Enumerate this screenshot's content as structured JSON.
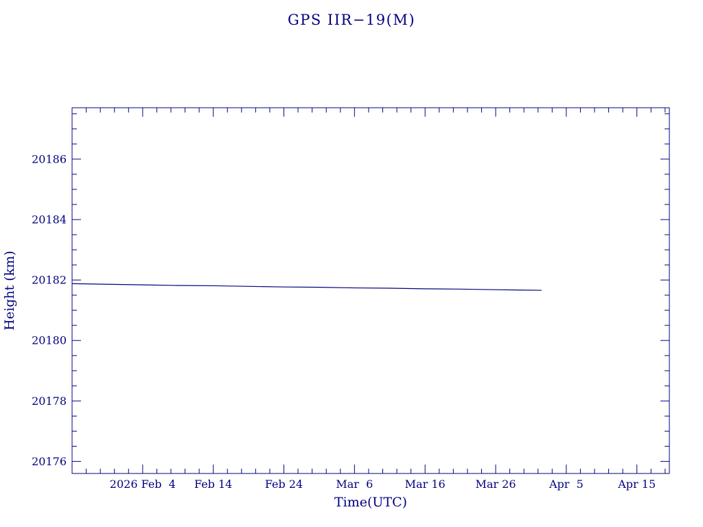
{
  "chart": {
    "title": "GPS IIR−19(M)"
  },
  "chart_data": {
    "type": "line",
    "title": "GPS IIR−19(M)",
    "xlabel": "Time(UTC)",
    "ylabel": "Height (km)",
    "accent_color": "#000080",
    "background_color": "#ffffff",
    "grid": false,
    "legend": "none",
    "x_unit": "days since 2026 Jan 25",
    "xlim": [
      0,
      84.6
    ],
    "ylim": [
      20175.6,
      20187.7
    ],
    "x_ticks": [
      {
        "value": 10,
        "label": "2026 Feb  4"
      },
      {
        "value": 20,
        "label": "Feb 14"
      },
      {
        "value": 30,
        "label": "Feb 24"
      },
      {
        "value": 40,
        "label": "Mar  6"
      },
      {
        "value": 50,
        "label": "Mar 16"
      },
      {
        "value": 60,
        "label": "Mar 26"
      },
      {
        "value": 70,
        "label": "Apr  5"
      },
      {
        "value": 80,
        "label": "Apr 15"
      }
    ],
    "x_minor_step": 2,
    "y_ticks": [
      {
        "value": 20176,
        "label": "20176"
      },
      {
        "value": 20178,
        "label": "20178"
      },
      {
        "value": 20180,
        "label": "20180"
      },
      {
        "value": 20182,
        "label": "20182"
      },
      {
        "value": 20184,
        "label": "20184"
      },
      {
        "value": 20186,
        "label": "20186"
      }
    ],
    "y_minor_step": 0.5,
    "series": [
      {
        "name": "height-km",
        "x": [
          0,
          5,
          10,
          15,
          20,
          25,
          30,
          35,
          40,
          45,
          50,
          55,
          60,
          63,
          66.5
        ],
        "y": [
          20181.88,
          20181.86,
          20181.84,
          20181.82,
          20181.81,
          20181.79,
          20181.77,
          20181.76,
          20181.74,
          20181.73,
          20181.71,
          20181.7,
          20181.68,
          20181.67,
          20181.66
        ]
      }
    ]
  }
}
